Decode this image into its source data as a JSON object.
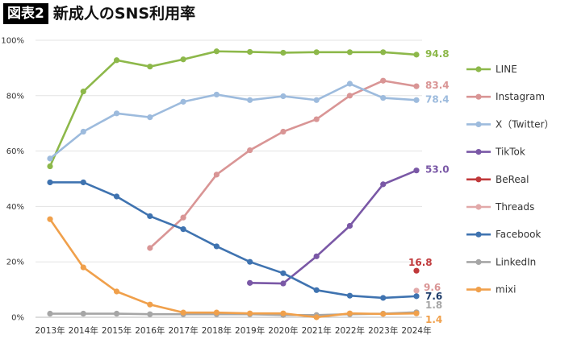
{
  "figure": {
    "label": "図表2",
    "title": "新成人のSNS利用率"
  },
  "chart_data": {
    "type": "line",
    "categories": [
      "2013年",
      "2014年",
      "2015年",
      "2016年",
      "2017年",
      "2018年",
      "2019年",
      "2020年",
      "2021年",
      "2022年",
      "2023年",
      "2024年"
    ],
    "ylim": [
      0,
      100
    ],
    "yticks": [
      "0%",
      "20%",
      "40%",
      "60%",
      "80%",
      "100%"
    ],
    "grid": true,
    "legend_position": "right",
    "series": [
      {
        "name": "LINE",
        "color": "#8db84a",
        "label_color": "#8db84a",
        "end_label": "94.8",
        "values": [
          54.5,
          81.5,
          92.8,
          90.5,
          93.1,
          96.0,
          95.8,
          95.5,
          95.7,
          95.7,
          95.7,
          94.8
        ]
      },
      {
        "name": "Instagram",
        "color": "#d99595",
        "label_color": "#d99595",
        "end_label": "83.4",
        "values": [
          null,
          null,
          null,
          25.0,
          36.0,
          51.5,
          60.3,
          67.0,
          71.5,
          80.0,
          85.4,
          83.4
        ]
      },
      {
        "name": "X（Twitter）",
        "color": "#9dbbdd",
        "label_color": "#9dbbdd",
        "end_label": "78.4",
        "values": [
          57.3,
          67.0,
          73.6,
          72.2,
          77.8,
          80.4,
          78.4,
          79.8,
          78.4,
          84.3,
          79.2,
          78.4
        ]
      },
      {
        "name": "TikTok",
        "color": "#7a58a6",
        "label_color": "#7a58a6",
        "end_label": "53.0",
        "values": [
          null,
          null,
          null,
          null,
          null,
          null,
          12.4,
          12.2,
          22.0,
          33.0,
          48.0,
          53.0
        ]
      },
      {
        "name": "BeReal",
        "color": "#c0393b",
        "label_color": "#c0393b",
        "end_label": "16.8",
        "values": [
          null,
          null,
          null,
          null,
          null,
          null,
          null,
          null,
          null,
          null,
          null,
          16.8
        ]
      },
      {
        "name": "Threads",
        "color": "#e2a9a9",
        "label_color": "#d99595",
        "end_label": "9.6",
        "values": [
          null,
          null,
          null,
          null,
          null,
          null,
          null,
          null,
          null,
          null,
          null,
          9.6
        ]
      },
      {
        "name": "Facebook",
        "color": "#3f73b0",
        "label_color": "#1f3d6b",
        "end_label": "7.6",
        "values": [
          48.7,
          48.7,
          43.6,
          36.5,
          31.8,
          25.6,
          20.0,
          15.9,
          9.8,
          7.8,
          7.0,
          7.6
        ]
      },
      {
        "name": "LinkedIn",
        "color": "#a6a6a6",
        "label_color": "#a6a6a6",
        "end_label": "1.8",
        "values": [
          1.3,
          1.3,
          1.3,
          1.1,
          1.1,
          1.1,
          1.1,
          0.8,
          0.8,
          1.1,
          1.3,
          1.8
        ]
      },
      {
        "name": "mixi",
        "color": "#f0a04b",
        "label_color": "#f0a04b",
        "end_label": "1.4",
        "values": [
          35.4,
          18.0,
          9.3,
          4.6,
          1.7,
          1.7,
          1.4,
          1.4,
          0.0,
          1.4,
          1.2,
          1.4
        ]
      }
    ]
  }
}
